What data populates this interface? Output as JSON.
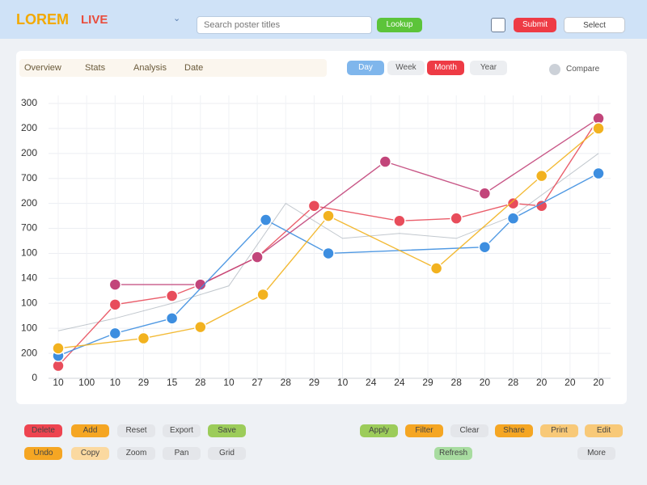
{
  "header": {
    "logo": "LOREM",
    "logo_badge": "LIVE",
    "search_placeholder": "Search poster titles",
    "search_button": "Lookup",
    "primary_button": "Submit",
    "dropdown": "Select"
  },
  "toolbar": {
    "filters": [
      "Overview",
      "Stats",
      "Analysis",
      "Date"
    ],
    "tabs": [
      "Day",
      "Week",
      "Month",
      "Year"
    ],
    "toggle": "Compare"
  },
  "chart_data": {
    "type": "line",
    "categories": [
      "10",
      "100",
      "10",
      "29",
      "15",
      "28",
      "10",
      "27",
      "28",
      "29",
      "10",
      "24",
      "24",
      "29",
      "28",
      "20",
      "28",
      "20",
      "20",
      "20"
    ],
    "xlim": [
      0,
      19
    ],
    "ylim": [
      0,
      1100
    ],
    "yticks": [
      0,
      {
        "value": 100,
        "label": "200"
      },
      {
        "value": 200,
        "label": "100"
      },
      {
        "value": 300,
        "label": "100"
      },
      {
        "value": 400,
        "label": "140"
      },
      {
        "value": 500,
        "label": "100"
      },
      {
        "value": 600,
        "label": "700"
      },
      {
        "value": 700,
        "label": "200"
      },
      {
        "value": 800,
        "label": "700"
      },
      {
        "value": 900,
        "label": "200"
      },
      {
        "value": 1000,
        "label": "200"
      },
      {
        "value": 1100,
        "label": "300"
      }
    ],
    "grid": true,
    "series": [
      {
        "color": "#9aa3ad",
        "x": [
          0,
          2,
          4,
          6,
          8,
          10,
          12,
          14,
          16,
          19
        ],
        "values": [
          190,
          240,
          300,
          370,
          700,
          560,
          580,
          560,
          650,
          900
        ]
      },
      {
        "color": "#e84d5b",
        "x": [
          0,
          2,
          4,
          5,
          7,
          9,
          12,
          14,
          16,
          17,
          19
        ],
        "values": [
          50,
          295,
          330,
          375,
          485,
          690,
          630,
          640,
          700,
          690,
          1040
        ]
      },
      {
        "color": "#c2457a",
        "x": [
          2,
          5,
          7,
          11.5,
          15,
          19
        ],
        "values": [
          375,
          375,
          485,
          867,
          740,
          1040
        ]
      },
      {
        "color": "#3d8ee0",
        "x": [
          0,
          2,
          4,
          7.3,
          9.5,
          15,
          16,
          19
        ],
        "values": [
          90,
          180,
          240,
          634,
          500,
          525,
          640,
          820
        ]
      },
      {
        "color": "#f2b21f",
        "x": [
          0,
          3,
          5,
          7.2,
          9.5,
          13.3,
          17,
          19
        ],
        "values": [
          120,
          160,
          205,
          335,
          650,
          440,
          810,
          1000
        ]
      }
    ]
  },
  "buttons": {
    "row1": [
      {
        "label": "Delete",
        "color": "#ee4450"
      },
      {
        "label": "Add",
        "color": "#f5a623"
      },
      {
        "label": "Reset",
        "color": "#e4e6ea"
      },
      {
        "label": "Export",
        "color": "#e4e6ea"
      },
      {
        "label": "Save",
        "color": "#9ccc5a"
      },
      {
        "label": "Apply",
        "color": "#9ccc5a"
      },
      {
        "label": "Filter",
        "color": "#f5a623"
      },
      {
        "label": "Clear",
        "color": "#e4e6ea"
      },
      {
        "label": "Share",
        "color": "#f5a623"
      },
      {
        "label": "Print",
        "color": "#f8c978"
      },
      {
        "label": "Edit",
        "color": "#f8c978"
      }
    ],
    "row2": [
      {
        "label": "Undo",
        "color": "#f5a623"
      },
      {
        "label": "Copy",
        "color": "#fbd9a0"
      },
      {
        "label": "Zoom",
        "color": "#e4e6ea"
      },
      {
        "label": "Pan",
        "color": "#e4e6ea"
      },
      {
        "label": "Grid",
        "color": "#e4e6ea"
      },
      {
        "label": "Refresh",
        "color": "#a8dca0"
      },
      {
        "label": "More",
        "color": "#e4e6ea"
      }
    ]
  }
}
